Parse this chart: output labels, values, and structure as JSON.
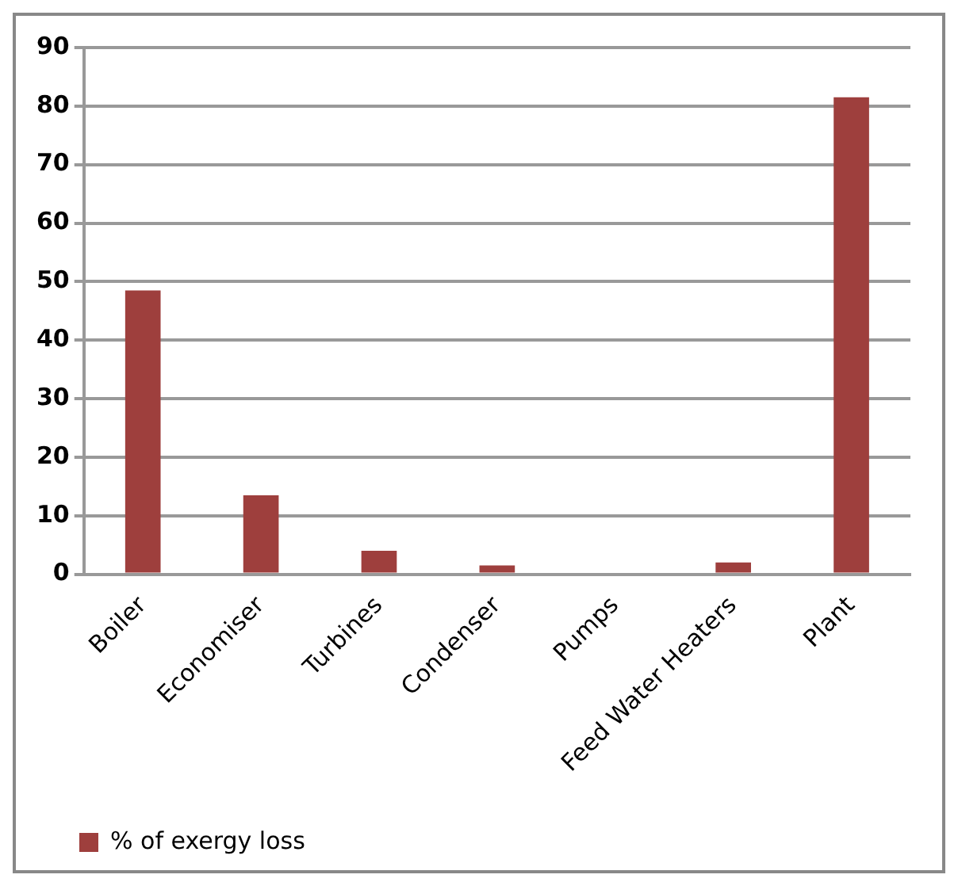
{
  "chart_data": {
    "type": "bar",
    "categories": [
      "Boiler",
      "Economiser",
      "Turbines",
      "Condenser",
      "Pumps",
      "Feed Water Heaters",
      "Plant"
    ],
    "series": [
      {
        "name": "% of exergy loss",
        "color": "#9e3f3d",
        "values": [
          48.5,
          13.5,
          4,
          1.5,
          0.3,
          2,
          81.5
        ]
      }
    ],
    "ylim": [
      0,
      90
    ],
    "yticks": [
      0,
      10,
      20,
      30,
      40,
      50,
      60,
      70,
      80,
      90
    ],
    "grid": "y",
    "legend": "bottom"
  }
}
